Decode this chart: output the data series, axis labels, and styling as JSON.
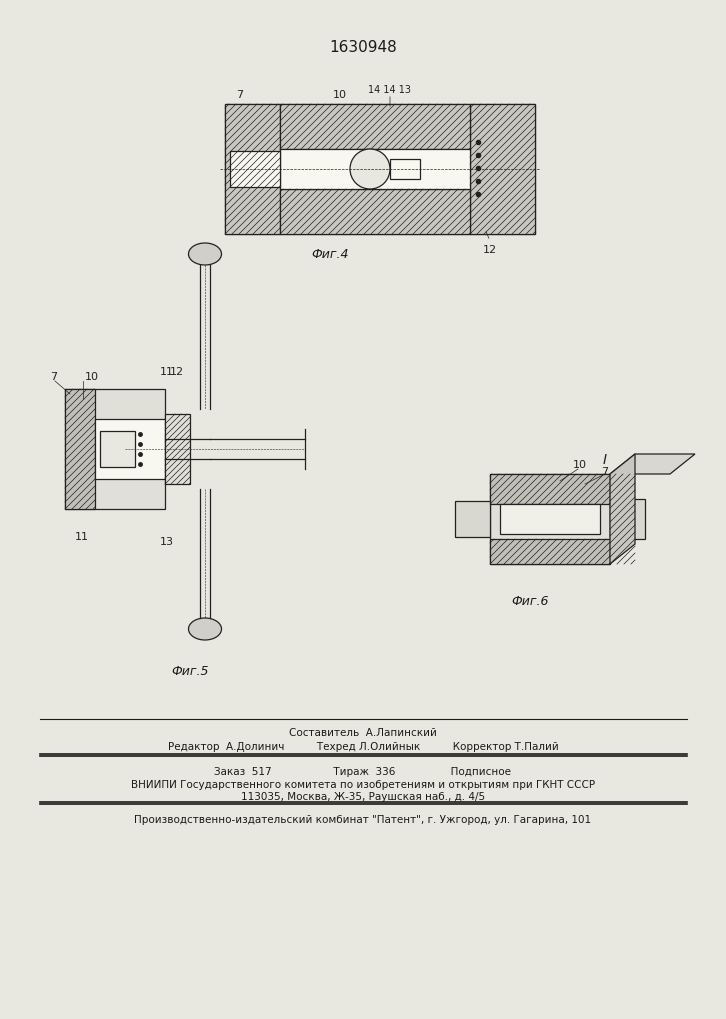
{
  "patent_number": "1630948",
  "bg_color": "#e8e8e0",
  "fig_color": "#d0cfc8",
  "line_color": "#1a1a1a",
  "hatch_color": "#1a1a1a",
  "fig4_label": "Фиг.4",
  "fig5_label": "Фиг.5",
  "fig6_label": "Фиг.6",
  "footer_lines": [
    "Составитель  А.Лапинский",
    "Редактор  А.Долинич          Техред Л.Олийнык          Корректор Т.Палий",
    "Заказ  517                   Тираж  336                 Подписное",
    "ВНИИПИ Государственного комитета по изобретениям и открытиям при ГКНТ СССР",
    "113035, Москва, Ж-35, Раушская наб., д. 4/5",
    "Производственно-издательский комбинат \"Патент\", г. Ужгород, ул. Гагарина, 101"
  ],
  "font_size_patent": 11,
  "font_size_fig_label": 10,
  "font_size_footer": 7.5,
  "font_size_part_label": 9
}
